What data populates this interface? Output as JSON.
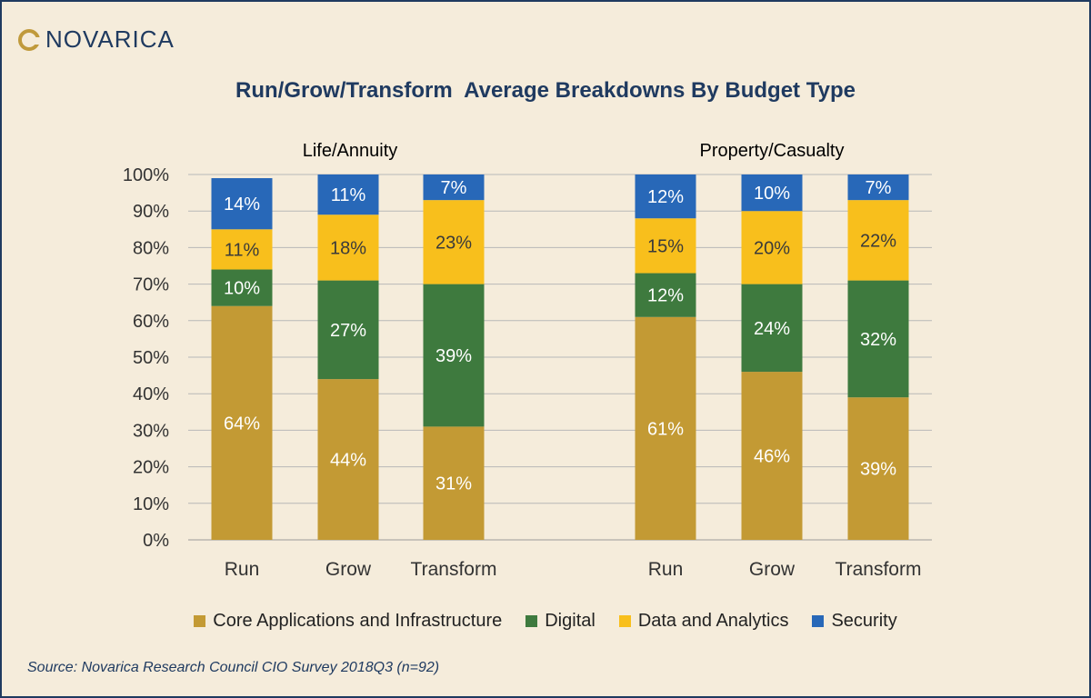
{
  "logo": {
    "text": "NOVARICA"
  },
  "chart_data": {
    "type": "bar",
    "stacked": true,
    "title": "Run/Grow/Transform  Average Breakdowns By Budget Type",
    "groups": [
      {
        "name": "Life/Annuity",
        "categories": [
          "Run",
          "Grow",
          "Transform"
        ]
      },
      {
        "name": "Property/Casualty",
        "categories": [
          "Run",
          "Grow",
          "Transform"
        ]
      }
    ],
    "series": [
      {
        "name": "Core Applications and Infrastructure",
        "color": "#c39a34",
        "values": [
          [
            64,
            44,
            31
          ],
          [
            61,
            46,
            39
          ]
        ]
      },
      {
        "name": "Digital",
        "color": "#3e7a3e",
        "values": [
          [
            10,
            27,
            39
          ],
          [
            12,
            24,
            32
          ]
        ]
      },
      {
        "name": "Data and Analytics",
        "color": "#f8bf1c",
        "values": [
          [
            11,
            18,
            23
          ],
          [
            15,
            20,
            22
          ]
        ]
      },
      {
        "name": "Security",
        "color": "#2868b8",
        "values": [
          [
            14,
            11,
            7
          ],
          [
            12,
            10,
            7
          ]
        ]
      }
    ],
    "y_ticks": [
      "0%",
      "10%",
      "20%",
      "30%",
      "40%",
      "50%",
      "60%",
      "70%",
      "80%",
      "90%",
      "100%"
    ],
    "ylim": [
      0,
      100
    ],
    "grid": true,
    "legend_position": "bottom"
  },
  "source": "Source: Novarica Research Council CIO Survey 2018Q3 (n=92)"
}
